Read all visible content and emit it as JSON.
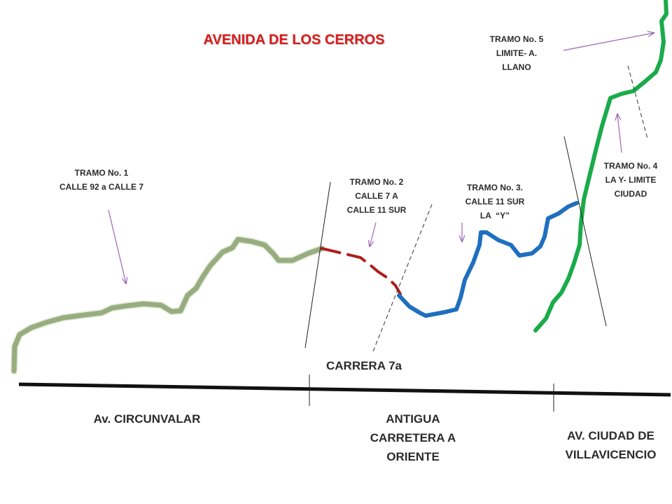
{
  "title": "AVENIDA DE LOS CERROS",
  "tramos": [
    {
      "line1": "TRAMO No. 1",
      "line2": "CALLE 92 a CALLE 7",
      "line3": ""
    },
    {
      "line1": "TRAMO No. 2",
      "line2": "CALLE 7 A",
      "line3": "CALLE 11 SUR"
    },
    {
      "line1": "TRAMO No. 3.",
      "line2": "CALLE 11 SUR",
      "line3": "LA  “Y”"
    },
    {
      "line1": "TRAMO No. 4",
      "line2": "LA Y- LIMITE",
      "line3": "CIUDAD"
    },
    {
      "line1": "TRAMO No. 5",
      "line2": "LIMITE- A.",
      "line3": "LLANO"
    }
  ],
  "roads": {
    "carrera": "CARRERA 7a",
    "circunvalar": "Av. CIRCUNVALAR",
    "antigua": [
      "ANTIGUA",
      "CARRETERA A",
      "ORIENTE"
    ],
    "ciudad": [
      "AV. CIUDAD DE",
      "VILLAVICENCIO"
    ]
  },
  "colors": {
    "tramo1": "#97ad80",
    "tramo2": "#b01c1c",
    "tramo3": "#1f6fbf",
    "tramo4_5": "#1aab4a",
    "arrow": "#9966b8",
    "title": "#d81b1b",
    "baseline": "#111111"
  }
}
